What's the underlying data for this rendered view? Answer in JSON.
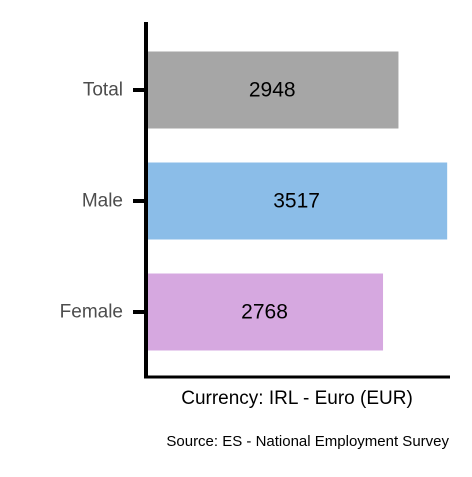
{
  "chart_data": {
    "type": "bar",
    "orientation": "horizontal",
    "categories": [
      "Total",
      "Male",
      "Female"
    ],
    "values": [
      2948,
      3517,
      2768
    ],
    "colors": [
      "#a6a6a6",
      "#8bbde8",
      "#d6a8e0"
    ],
    "title": "",
    "xlabel": "Currency: IRL - Euro (EUR)",
    "ylabel": "",
    "xlim": [
      0,
      3550
    ],
    "grid": false,
    "legend": "none",
    "data_labels": [
      "2948",
      "3517",
      "2768"
    ],
    "caption": "Source:  ES - National Employment Survey"
  }
}
